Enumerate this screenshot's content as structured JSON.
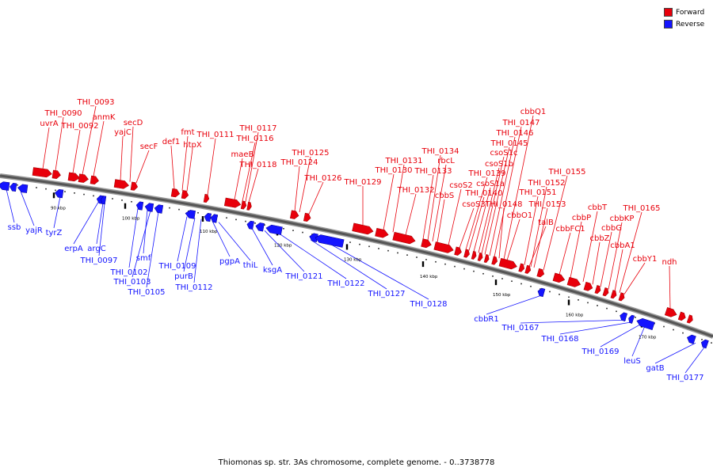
{
  "legend": {
    "forward": {
      "label": "Forward",
      "color": "#e8000b"
    },
    "reverse": {
      "label": "Reverse",
      "color": "#1414ff"
    }
  },
  "caption": "Thiomonas sp. str. 3As chromosome, complete genome. - 0..3738778",
  "kbp_ticks": [
    "90 kbp",
    "100 kbp",
    "110 kbp",
    "120 kbp",
    "130 kbp",
    "140 kbp",
    "150 kbp",
    "160 kbp",
    "170 kbp"
  ],
  "forward_genes": [
    "uvrA",
    "THI_0090",
    "THI_0092",
    "THI_0093",
    "anmK",
    "yajC",
    "secD",
    "secF",
    "def1",
    "fmt",
    "htpX",
    "THI_0111",
    "maeB",
    "THI_0116",
    "THI_0117",
    "THI_0118",
    "THI_0124",
    "THI_0125",
    "THI_0126",
    "THI_0129",
    "THI_0130",
    "THI_0131",
    "THI_0132",
    "THI_0133",
    "THI_0134",
    "rbcL",
    "cbbS",
    "csoS2",
    "csoS3",
    "THI_0139",
    "THI_0140",
    "csoS1a",
    "csoS1b",
    "csoS1c",
    "THI_0145",
    "THI_0146",
    "THI_0147",
    "cbbQ1",
    "THI_0148",
    "cbbO1",
    "talB",
    "THI_0151",
    "THI_0152",
    "THI_0153",
    "THI_0155",
    "cbbFC1",
    "cbbP",
    "cbbT",
    "cbbZ",
    "cbbG",
    "cbbA1",
    "cbbKP",
    "cbbY1",
    "THI_0165",
    "ndh"
  ],
  "reverse_genes": [
    "ssb",
    "yajR",
    "tyrZ",
    "erpA",
    "argC",
    "THI_0097",
    "THI_0102",
    "smf",
    "THI_0103",
    "THI_0105",
    "THI_0109",
    "purB",
    "THI_0112",
    "pgpA",
    "thiL",
    "ksgA",
    "THI_0121",
    "THI_0122",
    "THI_0127",
    "THI_0128",
    "cbbR1",
    "THI_0167",
    "THI_0168",
    "THI_0169",
    "leuS",
    "gatB",
    "THI_0177"
  ]
}
